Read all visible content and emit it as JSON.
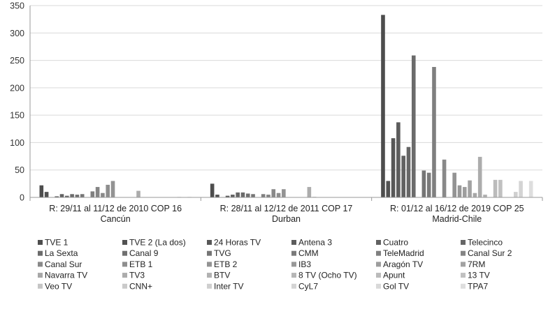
{
  "chart_data": {
    "type": "bar",
    "title": "",
    "xlabel": "",
    "ylabel": "",
    "ylim": [
      0,
      350
    ],
    "yticks": [
      0,
      50,
      100,
      150,
      200,
      250,
      300,
      350
    ],
    "grid": true,
    "legend_position": "bottom",
    "categories": [
      [
        "R: 29/11 al 11/12 de 2010 COP 16",
        "Cancún"
      ],
      [
        "R: 28/11 al 12/12 de 2011 COP 17",
        "Durban"
      ],
      [
        "R: 01/12 al 16/12 de 2019 COP 25",
        "Madrid-Chile"
      ]
    ],
    "series": [
      {
        "name": "TVE 1",
        "color": "#4d4d4d",
        "values": [
          22,
          25,
          333
        ]
      },
      {
        "name": "TVE 2 (La dos)",
        "color": "#525252",
        "values": [
          10,
          5,
          30
        ]
      },
      {
        "name": "24 Horas TV",
        "color": "#575757",
        "values": [
          0,
          0,
          108
        ]
      },
      {
        "name": "Antena 3",
        "color": "#5c5c5c",
        "values": [
          2,
          3,
          137
        ]
      },
      {
        "name": "Cuatro",
        "color": "#616161",
        "values": [
          6,
          5,
          76
        ]
      },
      {
        "name": "Telecinco",
        "color": "#666666",
        "values": [
          3,
          9,
          92
        ]
      },
      {
        "name": "La Sexta",
        "color": "#6b6b6b",
        "values": [
          6,
          9,
          259
        ]
      },
      {
        "name": "Canal 9",
        "color": "#707070",
        "values": [
          5,
          7,
          0
        ]
      },
      {
        "name": "TVG",
        "color": "#757575",
        "values": [
          6,
          6,
          49
        ]
      },
      {
        "name": "CMM",
        "color": "#7a7a7a",
        "values": [
          0,
          0,
          45
        ]
      },
      {
        "name": "TeleMadrid",
        "color": "#7f7f7f",
        "values": [
          11,
          6,
          238
        ]
      },
      {
        "name": "Canal Sur 2",
        "color": "#848484",
        "values": [
          19,
          5,
          0
        ]
      },
      {
        "name": "Canal Sur",
        "color": "#898989",
        "values": [
          8,
          15,
          69
        ]
      },
      {
        "name": "ETB 1",
        "color": "#8e8e8e",
        "values": [
          23,
          8,
          0
        ]
      },
      {
        "name": "ETB 2",
        "color": "#939393",
        "values": [
          30,
          15,
          45
        ]
      },
      {
        "name": "IB3",
        "color": "#989898",
        "values": [
          0,
          0,
          22
        ]
      },
      {
        "name": "Aragón TV",
        "color": "#9d9d9d",
        "values": [
          0,
          0,
          19
        ]
      },
      {
        "name": "7RM",
        "color": "#a2a2a2",
        "values": [
          0,
          0,
          31
        ]
      },
      {
        "name": "Navarra TV",
        "color": "#a7a7a7",
        "values": [
          0,
          0,
          8
        ]
      },
      {
        "name": "TV3",
        "color": "#acacac",
        "values": [
          12,
          19,
          74
        ]
      },
      {
        "name": "BTV",
        "color": "#b1b1b1",
        "values": [
          0,
          1,
          5
        ]
      },
      {
        "name": "8 TV (Ocho TV)",
        "color": "#b6b6b6",
        "values": [
          0,
          0,
          0
        ]
      },
      {
        "name": "Apunt",
        "color": "#bbbbbb",
        "values": [
          0,
          0,
          32
        ]
      },
      {
        "name": "13 TV",
        "color": "#c0c0c0",
        "values": [
          0,
          0,
          32
        ]
      },
      {
        "name": "Veo TV",
        "color": "#c5c5c5",
        "values": [
          0,
          0,
          0
        ]
      },
      {
        "name": "CNN+",
        "color": "#cacaca",
        "values": [
          0,
          0,
          0
        ]
      },
      {
        "name": "Inter TV",
        "color": "#cfcfcf",
        "values": [
          0,
          0,
          10
        ]
      },
      {
        "name": "CyL7",
        "color": "#d4d4d4",
        "values": [
          1,
          0,
          30
        ]
      },
      {
        "name": "Gol TV",
        "color": "#d9d9d9",
        "values": [
          0,
          0,
          0
        ]
      },
      {
        "name": "TPA7",
        "color": "#dedede",
        "values": [
          1,
          0,
          30
        ]
      }
    ]
  }
}
